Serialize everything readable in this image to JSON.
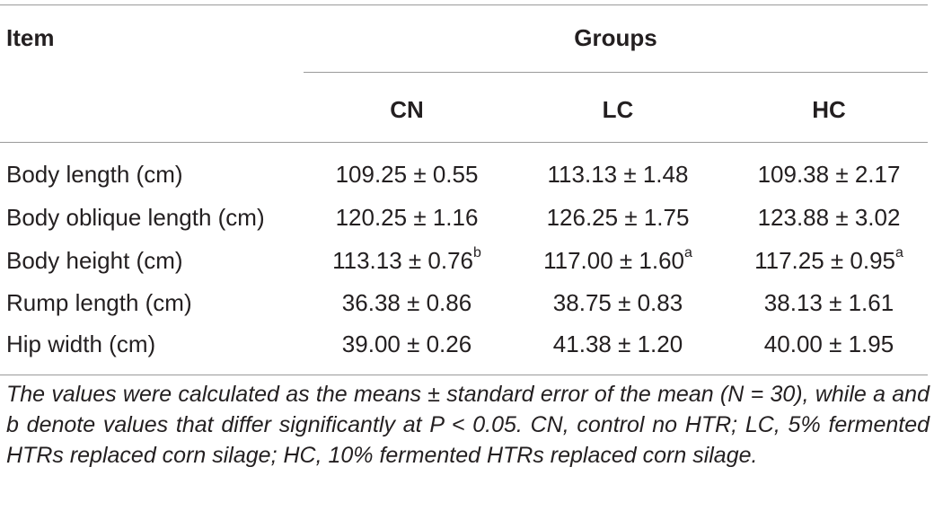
{
  "table": {
    "header": {
      "item": "Item",
      "groups": "Groups",
      "columns": [
        "CN",
        "LC",
        "HC"
      ]
    },
    "rows": [
      {
        "label": "Body length (cm)",
        "values": [
          {
            "text": "109.25 ± 0.55",
            "sup": ""
          },
          {
            "text": "113.13 ± 1.48",
            "sup": ""
          },
          {
            "text": "109.38 ± 2.17",
            "sup": ""
          }
        ]
      },
      {
        "label": "Body oblique length (cm)",
        "values": [
          {
            "text": "120.25 ± 1.16",
            "sup": ""
          },
          {
            "text": "126.25 ± 1.75",
            "sup": ""
          },
          {
            "text": "123.88 ± 3.02",
            "sup": ""
          }
        ]
      },
      {
        "label": "Body height (cm)",
        "values": [
          {
            "text": "113.13 ± 0.76",
            "sup": "b"
          },
          {
            "text": "117.00 ± 1.60",
            "sup": "a"
          },
          {
            "text": "117.25 ± 0.95",
            "sup": "a"
          }
        ]
      },
      {
        "label": "Rump length (cm)",
        "values": [
          {
            "text": "36.38 ± 0.86",
            "sup": ""
          },
          {
            "text": "38.75 ± 0.83",
            "sup": ""
          },
          {
            "text": "38.13 ± 1.61",
            "sup": ""
          }
        ]
      },
      {
        "label": "Hip width (cm)",
        "values": [
          {
            "text": "39.00 ± 0.26",
            "sup": ""
          },
          {
            "text": "41.38 ± 1.20",
            "sup": ""
          },
          {
            "text": "40.00 ± 1.95",
            "sup": ""
          }
        ]
      }
    ],
    "footnote": "The values were calculated as the means ± standard error of the mean (N = 30), while a and b denote values that differ significantly at P < 0.05. CN, control no HTR; LC, 5% fermented HTRs replaced corn silage; HC, 10% fermented HTRs replaced corn silage."
  }
}
